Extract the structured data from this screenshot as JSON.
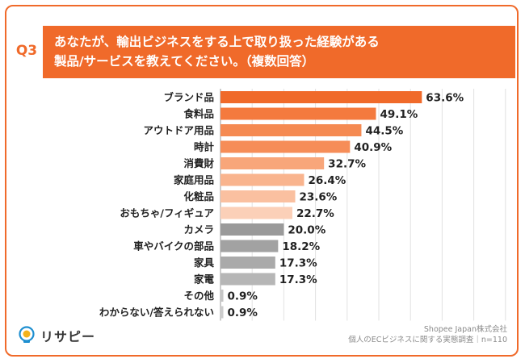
{
  "question": {
    "number": "Q3",
    "title": "あなたが、輸出ビジネスをする上で取り扱った経験がある\n製品/サービスを教えてください。（複数回答）"
  },
  "footer": {
    "company": "Shopee Japan株式会社",
    "survey": "個人のECビジネスに関する実態調査｜n=110"
  },
  "logo": {
    "text": "リサピー",
    "icon": "lightbulb-logo-icon"
  },
  "colors": {
    "header": "#f06a2a",
    "bars": [
      "#f06a2a",
      "#f47a3e",
      "#f58a52",
      "#f68d58",
      "#f8a67a",
      "#f9b48e",
      "#fac0a0",
      "#fbd0b8",
      "#9a9a9a",
      "#a2a2a2",
      "#aaaaaa",
      "#b6b6b6",
      "#c6c6c6",
      "#cccccc"
    ]
  },
  "chart_data": {
    "type": "bar",
    "orientation": "horizontal",
    "categories": [
      "ブランド品",
      "食料品",
      "アウトドア用品",
      "時計",
      "消費財",
      "家庭用品",
      "化粧品",
      "おもちゃ/フィギュア",
      "カメラ",
      "車やバイクの部品",
      "家具",
      "家電",
      "その他",
      "わからない/答えられない"
    ],
    "values": [
      63.6,
      49.1,
      44.5,
      40.9,
      32.7,
      26.4,
      23.6,
      22.7,
      20.0,
      18.2,
      17.3,
      17.3,
      0.9,
      0.9
    ],
    "value_labels": [
      "63.6%",
      "49.1%",
      "44.5%",
      "40.9%",
      "32.7%",
      "26.4%",
      "23.6%",
      "22.7%",
      "20.0%",
      "18.2%",
      "17.3%",
      "17.3%",
      "0.9%",
      "0.9%"
    ],
    "xlim": [
      0,
      100
    ],
    "grid": true,
    "legend": "none"
  }
}
